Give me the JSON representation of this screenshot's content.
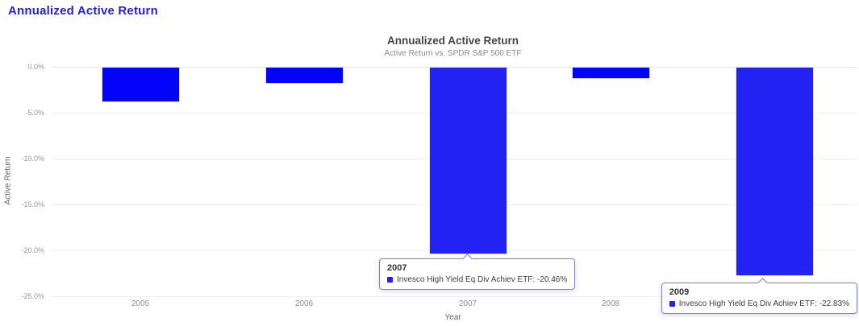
{
  "page": {
    "title": "Annualized Active Return"
  },
  "chart_data": {
    "type": "bar",
    "title": "Annualized Active Return",
    "subtitle": "Active Return vs. SPDR S&P 500 ETF",
    "xlabel": "Year",
    "ylabel": "Active Return",
    "categories": [
      "2005",
      "2006",
      "2007",
      "2008",
      "2009"
    ],
    "series": [
      {
        "name": "Invesco High Yield Eq Div Achiev ETF",
        "values": [
          -3.87,
          -1.85,
          -20.46,
          -1.32,
          -22.83
        ]
      }
    ],
    "ylim": [
      -25,
      0
    ],
    "ytick_labels": [
      "0.0%",
      "-5.0%",
      "-10.0%",
      "-15.0%",
      "-20.0%",
      "-25.0%"
    ],
    "grid": true,
    "legend_position": "none",
    "bar_color": "#0303fb",
    "bar_hover_color": "#2222f2",
    "hovered_categories": [
      "2007",
      "2009"
    ]
  },
  "tooltips": [
    {
      "year": "2007",
      "series": "Invesco High Yield Eq Div Achiev ETF",
      "value": "-20.46%",
      "label": "Invesco High Yield Eq Div Achiev ETF: -20.46%"
    },
    {
      "year": "2009",
      "series": "Invesco High Yield Eq Div Achiev ETF",
      "value": "-22.83%",
      "label": "Invesco High Yield Eq Div Achiev ETF: -22.83%"
    }
  ]
}
